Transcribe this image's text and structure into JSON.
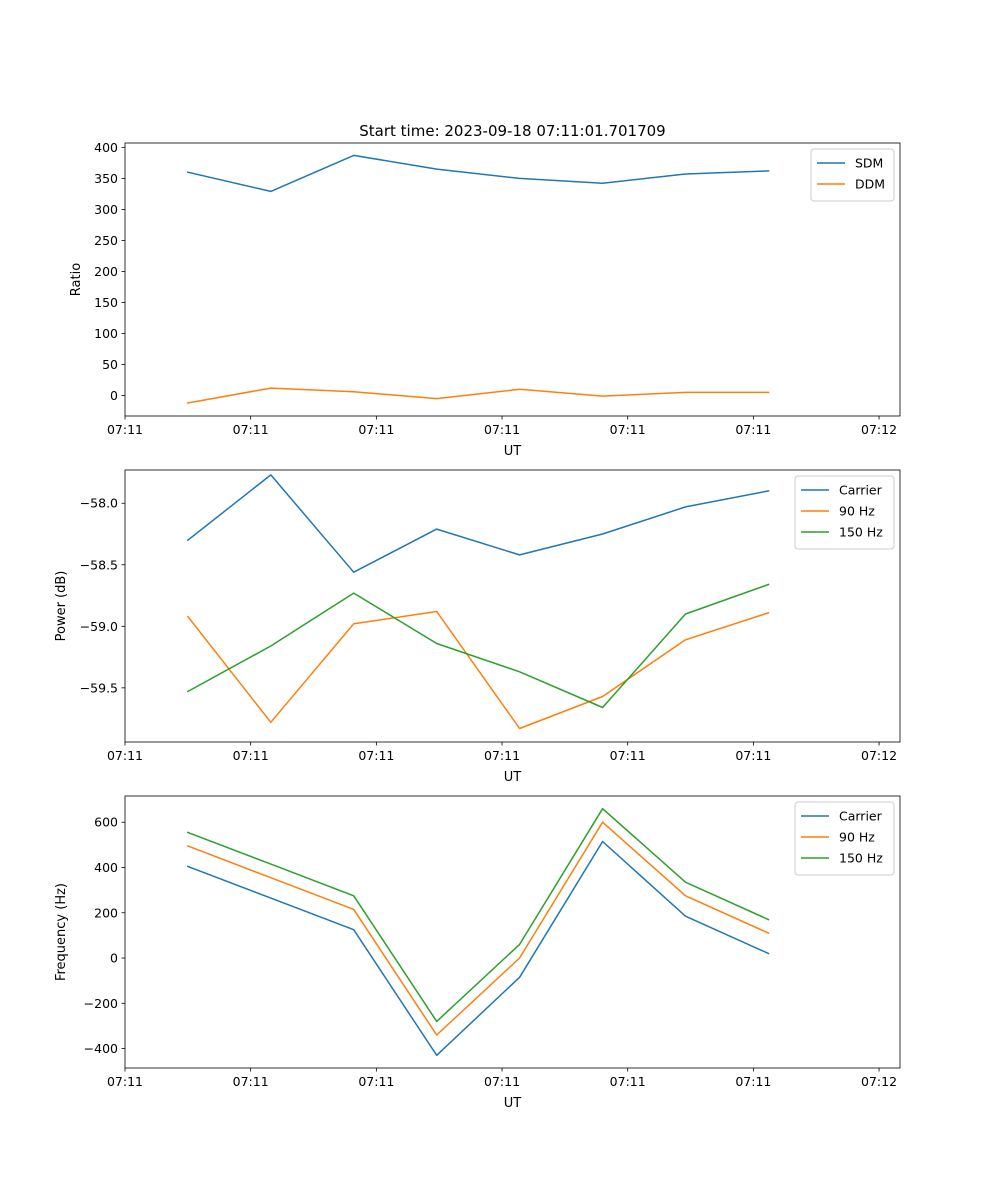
{
  "figure": {
    "title": "Start time: 2023-09-18 07:11:01.701709"
  },
  "chart_data": [
    {
      "type": "line",
      "title": "Start time: 2023-09-18 07:11:01.701709",
      "xlabel": "UT",
      "ylabel": "Ratio",
      "xlim": [
        0,
        9.25
      ],
      "ylim": [
        -33,
        407
      ],
      "xtick_values": [
        0,
        1.5,
        3,
        4.5,
        6,
        7.5,
        9
      ],
      "xtick_labels": [
        "07:11",
        "07:11",
        "07:11",
        "07:11",
        "07:11",
        "07:11",
        "07:12"
      ],
      "ytick_values": [
        0,
        50,
        100,
        150,
        200,
        250,
        300,
        350,
        400
      ],
      "ytick_labels": [
        "0",
        "50",
        "100",
        "150",
        "200",
        "250",
        "300",
        "350",
        "400"
      ],
      "legend_position": "top-right",
      "x": [
        0.75,
        1.74,
        2.73,
        3.72,
        4.71,
        5.7,
        6.69,
        7.68
      ],
      "series": [
        {
          "name": "SDM",
          "color": "#1f77b4",
          "values": [
            360,
            329,
            387,
            365,
            350,
            342,
            357,
            362
          ]
        },
        {
          "name": "DDM",
          "color": "#ff7f0e",
          "values": [
            -12,
            12,
            6,
            -5,
            10,
            -1,
            5,
            5
          ]
        }
      ]
    },
    {
      "type": "line",
      "title": "",
      "xlabel": "UT",
      "ylabel": "Power (dB)",
      "xlim": [
        0,
        9.25
      ],
      "ylim": [
        -59.94,
        -57.73
      ],
      "xtick_values": [
        0,
        1.5,
        3,
        4.5,
        6,
        7.5,
        9
      ],
      "xtick_labels": [
        "07:11",
        "07:11",
        "07:11",
        "07:11",
        "07:11",
        "07:11",
        "07:12"
      ],
      "ytick_values": [
        -59.5,
        -59.0,
        -58.5,
        -58.0
      ],
      "ytick_labels": [
        "−59.5",
        "−59.0",
        "−58.5",
        "−58.0"
      ],
      "legend_position": "top-right",
      "x": [
        0.75,
        1.74,
        2.73,
        3.72,
        4.71,
        5.7,
        6.69,
        7.68
      ],
      "series": [
        {
          "name": "Carrier",
          "color": "#1f77b4",
          "values": [
            -58.3,
            -57.77,
            -58.56,
            -58.21,
            -58.42,
            -58.25,
            -58.03,
            -57.9
          ]
        },
        {
          "name": "90 Hz",
          "color": "#ff7f0e",
          "values": [
            -58.92,
            -59.78,
            -58.98,
            -58.88,
            -59.83,
            -59.57,
            -59.11,
            -58.89
          ]
        },
        {
          "name": "150 Hz",
          "color": "#2ca02c",
          "values": [
            -59.53,
            -59.16,
            -58.73,
            -59.14,
            -59.37,
            -59.66,
            -58.9,
            -58.66
          ]
        }
      ]
    },
    {
      "type": "line",
      "title": "",
      "xlabel": "UT",
      "ylabel": "Frequency (Hz)",
      "xlim": [
        0,
        9.25
      ],
      "ylim": [
        -486,
        716
      ],
      "xtick_values": [
        0,
        1.5,
        3,
        4.5,
        6,
        7.5,
        9
      ],
      "xtick_labels": [
        "07:11",
        "07:11",
        "07:11",
        "07:11",
        "07:11",
        "07:11",
        "07:12"
      ],
      "ytick_values": [
        -400,
        -200,
        0,
        200,
        400,
        600
      ],
      "ytick_labels": [
        "−400",
        "−200",
        "0",
        "200",
        "400",
        "600"
      ],
      "legend_position": "top-right",
      "x": [
        0.75,
        1.74,
        2.73,
        3.72,
        4.71,
        5.7,
        6.69,
        7.68
      ],
      "series": [
        {
          "name": "Carrier",
          "color": "#1f77b4",
          "values": [
            405,
            265,
            125,
            -430,
            -85,
            515,
            185,
            20
          ]
        },
        {
          "name": "90 Hz",
          "color": "#ff7f0e",
          "values": [
            495,
            355,
            215,
            -340,
            0,
            600,
            275,
            110
          ]
        },
        {
          "name": "150 Hz",
          "color": "#2ca02c",
          "values": [
            555,
            415,
            275,
            -280,
            60,
            660,
            335,
            170
          ]
        }
      ]
    }
  ]
}
